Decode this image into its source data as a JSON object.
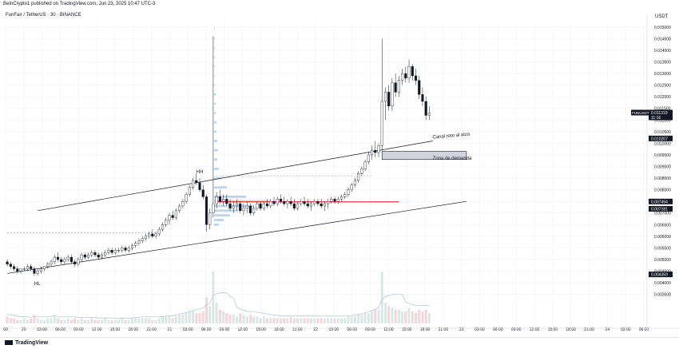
{
  "header": {
    "published": "BeInCrypto1 published on TradingView.com, Jun 23, 2025 10:47 UTC-3"
  },
  "chart_data": {
    "type": "candlestick",
    "symbol_title": "FunFair / TetherUS · 30 · BINANCE",
    "currency": "USDT",
    "ylim": [
      0.00225,
      0.0152
    ],
    "y_ticks": [
      "0.015000",
      "0.014500",
      "0.014000",
      "0.013500",
      "0.013000",
      "0.012500",
      "0.012000",
      "0.011500",
      "0.011000",
      "0.010500",
      "0.010000",
      "0.009500",
      "0.009000",
      "0.008500",
      "0.008000",
      "0.007500",
      "0.007000",
      "0.006500",
      "0.006000",
      "0.005500",
      "0.005000",
      "0.004500",
      "0.004000",
      "0.003500"
    ],
    "x_ticks": [
      "00",
      "20",
      "03:00",
      "06:00",
      "09:00",
      "12:00",
      "15:00",
      "18:00",
      "21:00",
      "21",
      "03:00",
      "06:00",
      "09:00",
      "12:00",
      "15:00",
      "18:00",
      "21:00",
      "22",
      "03:00",
      "06:00",
      "09:00",
      "12:00",
      "15:00",
      "18:00",
      "21:00",
      "23",
      "03:00",
      "06:00",
      "09:00",
      "12:00",
      "15:00",
      "18:00",
      "21:00",
      "24",
      "03:00",
      "06:00"
    ],
    "price_labels": [
      {
        "label": "FUNUSDT",
        "value": "0.011319",
        "sub": "11:16",
        "color": "#131722"
      },
      {
        "label": "",
        "value": "0.010207",
        "sub": "",
        "color": "#131722"
      },
      {
        "label": "",
        "value": "0.007494",
        "sub": "",
        "color": "#131722"
      },
      {
        "label": "",
        "value": "0.007181",
        "sub": "",
        "color": "#131722"
      },
      {
        "label": "",
        "value": "0.004359",
        "sub": "",
        "color": "#131722"
      }
    ],
    "annotations": [
      {
        "text": "HH",
        "x_index": 56,
        "price": 0.0087
      },
      {
        "text": "HL",
        "x_index": 8,
        "price": 0.0039
      },
      {
        "text": "Canal roto al alza",
        "x_index": 126,
        "price": 0.0102
      },
      {
        "text": "Zona de demanda",
        "x_index": 126,
        "price": 0.0093
      }
    ],
    "demand_zone": {
      "price_top": 0.00965,
      "price_bottom": 0.0093,
      "start_index": 111,
      "end_index": 136
    },
    "channel_upper": {
      "p1_index": 9,
      "p1_price": 0.0071,
      "p2_index": 126,
      "p2_price": 0.0101
    },
    "channel_lower": {
      "p1_index": 0,
      "p1_price": 0.0044,
      "p2_index": 136,
      "p2_price": 0.0075
    },
    "red_level": {
      "price": 0.00748,
      "start_index": 62,
      "end_index": 116
    },
    "dashed_levels": [
      {
        "price": 0.00615,
        "start_index": 0,
        "end_index": 45
      },
      {
        "price": 0.0086,
        "start_index": 62,
        "end_index": 108
      }
    ],
    "candles": [
      [
        0.0049,
        0.005,
        0.0047,
        0.0048
      ],
      [
        0.0048,
        0.0049,
        0.0046,
        0.0047
      ],
      [
        0.0047,
        0.0048,
        0.0045,
        0.0046
      ],
      [
        0.0046,
        0.0047,
        0.0044,
        0.0045
      ],
      [
        0.0045,
        0.0046,
        0.0044,
        0.0046
      ],
      [
        0.0046,
        0.0047,
        0.0045,
        0.0046
      ],
      [
        0.0046,
        0.0048,
        0.0045,
        0.0047
      ],
      [
        0.0047,
        0.0048,
        0.0045,
        0.0046
      ],
      [
        0.0046,
        0.0047,
        0.0043,
        0.0044
      ],
      [
        0.0044,
        0.0046,
        0.0043,
        0.0045
      ],
      [
        0.0045,
        0.0047,
        0.0044,
        0.0046
      ],
      [
        0.0046,
        0.0047,
        0.0045,
        0.0047
      ],
      [
        0.0047,
        0.0049,
        0.0046,
        0.0048
      ],
      [
        0.0048,
        0.005,
        0.0047,
        0.0049
      ],
      [
        0.0049,
        0.0052,
        0.0048,
        0.0051
      ],
      [
        0.0051,
        0.0053,
        0.0049,
        0.005
      ],
      [
        0.005,
        0.0051,
        0.0048,
        0.0049
      ],
      [
        0.0049,
        0.0051,
        0.0048,
        0.005
      ],
      [
        0.005,
        0.0052,
        0.0049,
        0.0051
      ],
      [
        0.0051,
        0.0052,
        0.0048,
        0.0049
      ],
      [
        0.0049,
        0.005,
        0.0047,
        0.0048
      ],
      [
        0.0048,
        0.0051,
        0.0047,
        0.005
      ],
      [
        0.005,
        0.0053,
        0.0049,
        0.0052
      ],
      [
        0.0052,
        0.0053,
        0.005,
        0.0051
      ],
      [
        0.0051,
        0.0053,
        0.005,
        0.0052
      ],
      [
        0.0052,
        0.0054,
        0.0051,
        0.0053
      ],
      [
        0.0053,
        0.0054,
        0.0051,
        0.0052
      ],
      [
        0.0052,
        0.0053,
        0.005,
        0.0051
      ],
      [
        0.0051,
        0.0053,
        0.005,
        0.0052
      ],
      [
        0.0052,
        0.0054,
        0.0051,
        0.0053
      ],
      [
        0.0053,
        0.0055,
        0.0052,
        0.0054
      ],
      [
        0.0054,
        0.0055,
        0.0052,
        0.0053
      ],
      [
        0.0053,
        0.0055,
        0.0052,
        0.0054
      ],
      [
        0.0054,
        0.0055,
        0.0053,
        0.0054
      ],
      [
        0.0054,
        0.0056,
        0.0053,
        0.0055
      ],
      [
        0.0055,
        0.0056,
        0.0053,
        0.0054
      ],
      [
        0.0054,
        0.0056,
        0.0053,
        0.0055
      ],
      [
        0.0055,
        0.0057,
        0.0054,
        0.0056
      ],
      [
        0.0056,
        0.0058,
        0.0055,
        0.0057
      ],
      [
        0.0057,
        0.0059,
        0.0056,
        0.0058
      ],
      [
        0.0058,
        0.006,
        0.0057,
        0.0059
      ],
      [
        0.0059,
        0.0061,
        0.0058,
        0.006
      ],
      [
        0.006,
        0.0062,
        0.0059,
        0.0061
      ],
      [
        0.0061,
        0.0063,
        0.0059,
        0.006
      ],
      [
        0.006,
        0.0062,
        0.0059,
        0.0061
      ],
      [
        0.0061,
        0.0064,
        0.006,
        0.0063
      ],
      [
        0.0063,
        0.0066,
        0.0062,
        0.0065
      ],
      [
        0.0065,
        0.0068,
        0.0064,
        0.0067
      ],
      [
        0.0067,
        0.007,
        0.0065,
        0.0069
      ],
      [
        0.0069,
        0.0071,
        0.0067,
        0.0068
      ],
      [
        0.0068,
        0.0072,
        0.0067,
        0.0071
      ],
      [
        0.0071,
        0.0074,
        0.007,
        0.0073
      ],
      [
        0.0073,
        0.0076,
        0.0072,
        0.0075
      ],
      [
        0.0075,
        0.0079,
        0.0074,
        0.0078
      ],
      [
        0.0078,
        0.0082,
        0.0077,
        0.0081
      ],
      [
        0.0081,
        0.0085,
        0.008,
        0.0084
      ],
      [
        0.0084,
        0.0087,
        0.0082,
        0.0083
      ],
      [
        0.0083,
        0.0085,
        0.0079,
        0.008
      ],
      [
        0.008,
        0.0082,
        0.0076,
        0.0077
      ],
      [
        0.0077,
        0.0078,
        0.0062,
        0.0065
      ],
      [
        0.0065,
        0.0072,
        0.0063,
        0.007
      ],
      [
        0.007,
        0.0146,
        0.0068,
        0.0074
      ],
      [
        0.0074,
        0.0079,
        0.0072,
        0.0077
      ],
      [
        0.0077,
        0.008,
        0.0074,
        0.0075
      ],
      [
        0.0075,
        0.0078,
        0.0073,
        0.0076
      ],
      [
        0.0076,
        0.0078,
        0.0073,
        0.0074
      ],
      [
        0.0074,
        0.0076,
        0.0071,
        0.0072
      ],
      [
        0.0072,
        0.0075,
        0.007,
        0.0073
      ],
      [
        0.0073,
        0.0076,
        0.0071,
        0.0074
      ],
      [
        0.0074,
        0.0075,
        0.007,
        0.0071
      ],
      [
        0.0071,
        0.0074,
        0.0069,
        0.0072
      ],
      [
        0.0072,
        0.0075,
        0.007,
        0.0073
      ],
      [
        0.0073,
        0.0074,
        0.0069,
        0.007
      ],
      [
        0.007,
        0.0073,
        0.0069,
        0.0072
      ],
      [
        0.0072,
        0.0075,
        0.0071,
        0.0074
      ],
      [
        0.0074,
        0.0075,
        0.0071,
        0.0072
      ],
      [
        0.0072,
        0.0075,
        0.0071,
        0.0074
      ],
      [
        0.0074,
        0.0076,
        0.0072,
        0.0073
      ],
      [
        0.0073,
        0.0076,
        0.0072,
        0.0075
      ],
      [
        0.0075,
        0.0077,
        0.0073,
        0.0074
      ],
      [
        0.0074,
        0.0077,
        0.0073,
        0.0076
      ],
      [
        0.0076,
        0.0078,
        0.0074,
        0.0075
      ],
      [
        0.0075,
        0.0077,
        0.0073,
        0.0074
      ],
      [
        0.0074,
        0.0076,
        0.0072,
        0.0075
      ],
      [
        0.0075,
        0.0077,
        0.0073,
        0.0074
      ],
      [
        0.0074,
        0.0076,
        0.0071,
        0.0072
      ],
      [
        0.0072,
        0.0075,
        0.0071,
        0.0074
      ],
      [
        0.0074,
        0.0076,
        0.0073,
        0.0075
      ],
      [
        0.0075,
        0.0077,
        0.0073,
        0.0074
      ],
      [
        0.0074,
        0.0076,
        0.0072,
        0.0073
      ],
      [
        0.0073,
        0.0075,
        0.0071,
        0.0074
      ],
      [
        0.0074,
        0.0076,
        0.0073,
        0.0075
      ],
      [
        0.0075,
        0.0076,
        0.0073,
        0.0074
      ],
      [
        0.0074,
        0.0076,
        0.0072,
        0.0073
      ],
      [
        0.0073,
        0.0075,
        0.0071,
        0.0074
      ],
      [
        0.0074,
        0.0076,
        0.0072,
        0.0075
      ],
      [
        0.0075,
        0.0077,
        0.0074,
        0.0076
      ],
      [
        0.0076,
        0.0077,
        0.0074,
        0.0075
      ],
      [
        0.0075,
        0.0077,
        0.0074,
        0.0076
      ],
      [
        0.0076,
        0.0078,
        0.0075,
        0.0077
      ],
      [
        0.0077,
        0.0079,
        0.0076,
        0.0078
      ],
      [
        0.0078,
        0.0081,
        0.0077,
        0.008
      ],
      [
        0.008,
        0.0083,
        0.0079,
        0.0082
      ],
      [
        0.0082,
        0.0085,
        0.0081,
        0.0084
      ],
      [
        0.0084,
        0.0088,
        0.0083,
        0.0087
      ],
      [
        0.0087,
        0.009,
        0.0086,
        0.0089
      ],
      [
        0.0089,
        0.0093,
        0.0088,
        0.0092
      ],
      [
        0.0092,
        0.0096,
        0.0091,
        0.0095
      ],
      [
        0.0095,
        0.0099,
        0.0093,
        0.0097
      ],
      [
        0.0097,
        0.0101,
        0.0094,
        0.0096
      ],
      [
        0.0096,
        0.01,
        0.0094,
        0.0099
      ],
      [
        0.0099,
        0.0145,
        0.0097,
        0.0118
      ],
      [
        0.0118,
        0.0124,
        0.011,
        0.0122
      ],
      [
        0.0122,
        0.0125,
        0.0114,
        0.0116
      ],
      [
        0.0116,
        0.0128,
        0.0114,
        0.0126
      ],
      [
        0.0126,
        0.013,
        0.012,
        0.0122
      ],
      [
        0.0122,
        0.0129,
        0.012,
        0.0127
      ],
      [
        0.0127,
        0.0132,
        0.0125,
        0.013
      ],
      [
        0.013,
        0.0133,
        0.0126,
        0.0128
      ],
      [
        0.0128,
        0.0136,
        0.0126,
        0.0133
      ],
      [
        0.0133,
        0.0134,
        0.0127,
        0.0129
      ],
      [
        0.0129,
        0.0132,
        0.0125,
        0.0127
      ],
      [
        0.0127,
        0.0129,
        0.0119,
        0.0121
      ],
      [
        0.0121,
        0.0124,
        0.0116,
        0.0118
      ],
      [
        0.0118,
        0.012,
        0.011,
        0.0112
      ],
      [
        0.0112,
        0.0116,
        0.011,
        0.0113
      ]
    ],
    "volume": [
      0.4,
      0.3,
      0.3,
      0.2,
      0.2,
      0.3,
      0.2,
      0.3,
      0.5,
      0.3,
      0.2,
      0.2,
      0.3,
      0.3,
      0.4,
      0.3,
      0.2,
      0.2,
      0.3,
      0.2,
      0.3,
      0.2,
      0.3,
      0.2,
      0.2,
      0.3,
      0.2,
      0.2,
      0.2,
      0.3,
      0.2,
      0.2,
      0.2,
      0.2,
      0.3,
      0.2,
      0.2,
      0.3,
      0.3,
      0.3,
      0.3,
      0.3,
      0.3,
      0.2,
      0.2,
      0.3,
      0.4,
      0.4,
      0.4,
      0.3,
      0.4,
      0.5,
      0.5,
      0.6,
      0.7,
      0.7,
      0.6,
      0.6,
      0.7,
      1.5,
      1.0,
      3.0,
      1.2,
      0.8,
      0.7,
      0.6,
      0.5,
      0.5,
      0.4,
      0.6,
      0.5,
      0.4,
      0.5,
      0.4,
      0.4,
      0.3,
      0.4,
      0.3,
      0.3,
      0.3,
      0.3,
      0.3,
      0.3,
      0.3,
      0.4,
      0.3,
      0.3,
      0.3,
      0.3,
      0.3,
      0.3,
      0.3,
      0.3,
      0.3,
      0.3,
      0.3,
      0.3,
      0.3,
      0.3,
      0.3,
      0.3,
      0.4,
      0.4,
      0.4,
      0.5,
      0.5,
      0.6,
      0.6,
      0.7,
      0.8,
      0.8,
      3.0,
      1.2,
      1.0,
      0.9,
      0.8,
      0.8,
      0.7,
      0.7,
      0.9,
      0.7,
      0.6,
      0.8,
      0.7,
      0.8,
      0.6
    ],
    "volume_profile": [
      {
        "price": 0.0149,
        "w": 1
      },
      {
        "price": 0.0145,
        "w": 1
      },
      {
        "price": 0.0141,
        "w": 1
      },
      {
        "price": 0.0137,
        "w": 1
      },
      {
        "price": 0.0133,
        "w": 1
      },
      {
        "price": 0.0129,
        "w": 1
      },
      {
        "price": 0.0125,
        "w": 1
      },
      {
        "price": 0.0121,
        "w": 2
      },
      {
        "price": 0.0117,
        "w": 2
      },
      {
        "price": 0.0113,
        "w": 2
      },
      {
        "price": 0.0109,
        "w": 3
      },
      {
        "price": 0.0105,
        "w": 3
      },
      {
        "price": 0.0101,
        "w": 4
      },
      {
        "price": 0.0097,
        "w": 5
      },
      {
        "price": 0.0093,
        "w": 4
      },
      {
        "price": 0.0089,
        "w": 6
      },
      {
        "price": 0.0085,
        "w": 9
      },
      {
        "price": 0.0081,
        "w": 16
      },
      {
        "price": 0.0077,
        "w": 40
      },
      {
        "price": 0.0075,
        "w": 70
      },
      {
        "price": 0.0073,
        "w": 50
      },
      {
        "price": 0.0071,
        "w": 30
      },
      {
        "price": 0.0069,
        "w": 20
      },
      {
        "price": 0.0067,
        "w": 12
      },
      {
        "price": 0.0065,
        "w": 6
      }
    ]
  },
  "footer": {
    "brand": "TradingView"
  }
}
